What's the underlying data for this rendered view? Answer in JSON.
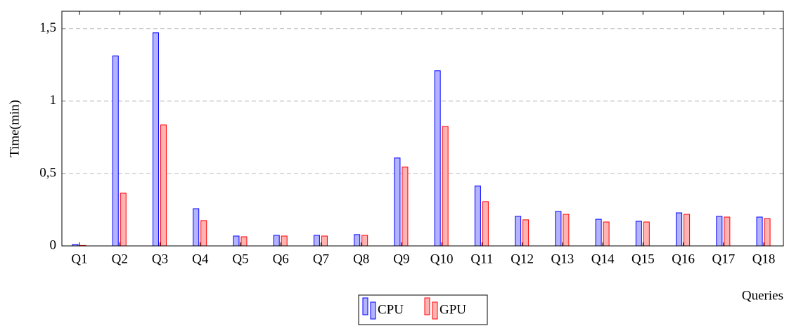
{
  "chart_data": {
    "type": "bar",
    "x_label": "Queries",
    "y_label": "Time(min)",
    "categories": [
      "Q1",
      "Q2",
      "Q3",
      "Q4",
      "Q5",
      "Q6",
      "Q7",
      "Q8",
      "Q9",
      "Q10",
      "Q11",
      "Q12",
      "Q13",
      "Q14",
      "Q15",
      "Q16",
      "Q17",
      "Q18"
    ],
    "series": [
      {
        "name": "CPU",
        "color": "#0000ff",
        "fill": "#b3b3ff",
        "values": [
          0.01,
          1.311,
          1.471,
          0.257,
          0.068,
          0.073,
          0.073,
          0.078,
          0.607,
          1.209,
          0.413,
          0.204,
          0.238,
          0.184,
          0.17,
          0.228,
          0.204,
          0.199
        ]
      },
      {
        "name": "GPU",
        "color": "#ff0000",
        "fill": "#ffb3b3",
        "values": [
          0.003,
          0.364,
          0.835,
          0.175,
          0.063,
          0.068,
          0.068,
          0.073,
          0.544,
          0.825,
          0.306,
          0.18,
          0.218,
          0.165,
          0.165,
          0.218,
          0.199,
          0.189
        ]
      }
    ],
    "ylim": [
      0,
      1.62
    ],
    "yticks": [
      0,
      {
        "value": 0.5,
        "label": "0,5"
      },
      1,
      {
        "value": 1.5,
        "label": "1,5"
      }
    ],
    "grid": true,
    "legend": "bottom"
  }
}
